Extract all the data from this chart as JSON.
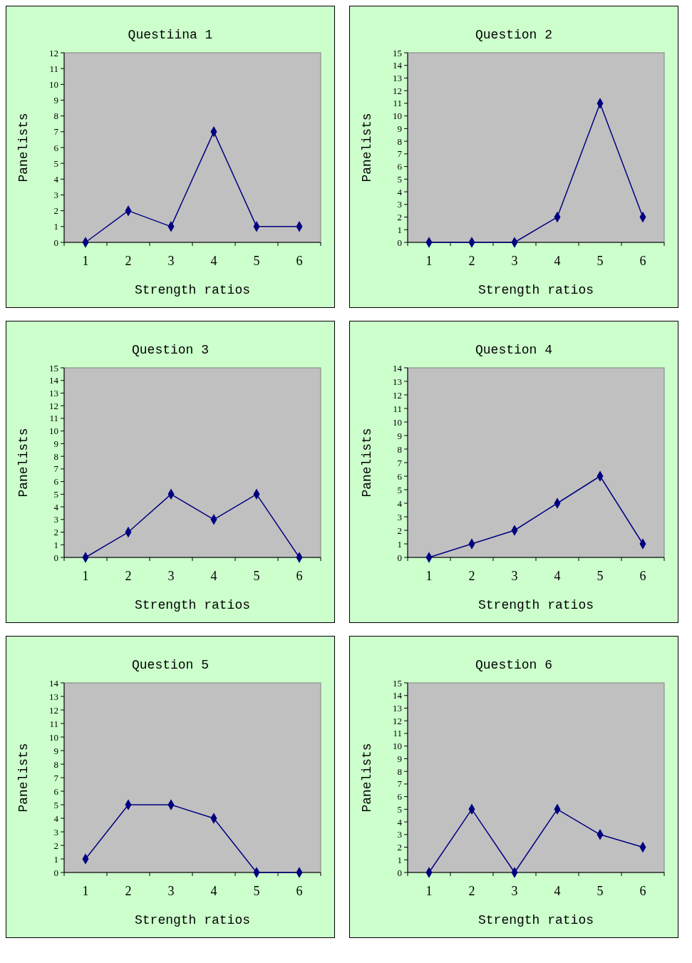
{
  "chart_data": [
    {
      "type": "line",
      "title": "Questiina 1",
      "xlabel": "Strength ratios",
      "ylabel": "Panelists",
      "categories": [
        "1",
        "2",
        "3",
        "4",
        "5",
        "6"
      ],
      "series": [
        {
          "color": "#000080",
          "values": [
            0,
            2,
            1,
            7,
            1,
            1
          ]
        }
      ],
      "ylim": [
        0,
        12
      ],
      "yticks": [
        0,
        1,
        2,
        3,
        4,
        5,
        6,
        7,
        8,
        9,
        10,
        11,
        12
      ],
      "marker": "diamond",
      "grid": false
    },
    {
      "type": "line",
      "title": "Question 2",
      "xlabel": "Strength ratios",
      "ylabel": "Panelists",
      "categories": [
        "1",
        "2",
        "3",
        "4",
        "5",
        "6"
      ],
      "series": [
        {
          "color": "#000080",
          "values": [
            0,
            0,
            0,
            2,
            11,
            2
          ]
        }
      ],
      "ylim": [
        0,
        15
      ],
      "yticks": [
        0,
        1,
        2,
        3,
        4,
        5,
        6,
        7,
        8,
        9,
        10,
        11,
        12,
        13,
        14,
        15
      ],
      "marker": "diamond",
      "grid": false
    },
    {
      "type": "line",
      "title": "Question 3",
      "xlabel": "Strength ratios",
      "ylabel": "Panelists",
      "categories": [
        "1",
        "2",
        "3",
        "4",
        "5",
        "6"
      ],
      "series": [
        {
          "color": "#000080",
          "values": [
            0,
            2,
            5,
            3,
            5,
            0
          ]
        }
      ],
      "ylim": [
        0,
        15
      ],
      "yticks": [
        0,
        1,
        2,
        3,
        4,
        5,
        6,
        7,
        8,
        9,
        10,
        11,
        12,
        13,
        14,
        15
      ],
      "marker": "diamond",
      "grid": false
    },
    {
      "type": "line",
      "title": "Question 4",
      "xlabel": "Strength ratios",
      "ylabel": "Panelists",
      "categories": [
        "1",
        "2",
        "3",
        "4",
        "5",
        "6"
      ],
      "series": [
        {
          "color": "#000080",
          "values": [
            0,
            1,
            2,
            4,
            6,
            1
          ]
        }
      ],
      "ylim": [
        0,
        14
      ],
      "yticks": [
        0,
        1,
        2,
        3,
        4,
        5,
        6,
        7,
        8,
        9,
        10,
        11,
        12,
        13,
        14
      ],
      "marker": "diamond",
      "grid": false
    },
    {
      "type": "line",
      "title": "Question 5",
      "xlabel": "Strength ratios",
      "ylabel": "Panelists",
      "categories": [
        "1",
        "2",
        "3",
        "4",
        "5",
        "6"
      ],
      "series": [
        {
          "color": "#000080",
          "values": [
            1,
            5,
            5,
            4,
            0,
            0
          ]
        }
      ],
      "ylim": [
        0,
        14
      ],
      "yticks": [
        0,
        1,
        2,
        3,
        4,
        5,
        6,
        7,
        8,
        9,
        10,
        11,
        12,
        13,
        14
      ],
      "marker": "diamond",
      "grid": false
    },
    {
      "type": "line",
      "title": "Question 6",
      "xlabel": "Strength ratios",
      "ylabel": "Panelists",
      "categories": [
        "1",
        "2",
        "3",
        "4",
        "5",
        "6"
      ],
      "series": [
        {
          "color": "#000080",
          "values": [
            0,
            5,
            0,
            5,
            3,
            2
          ]
        }
      ],
      "ylim": [
        0,
        15
      ],
      "yticks": [
        0,
        1,
        2,
        3,
        4,
        5,
        6,
        7,
        8,
        9,
        10,
        11,
        12,
        13,
        14,
        15
      ],
      "marker": "diamond",
      "grid": false
    }
  ]
}
